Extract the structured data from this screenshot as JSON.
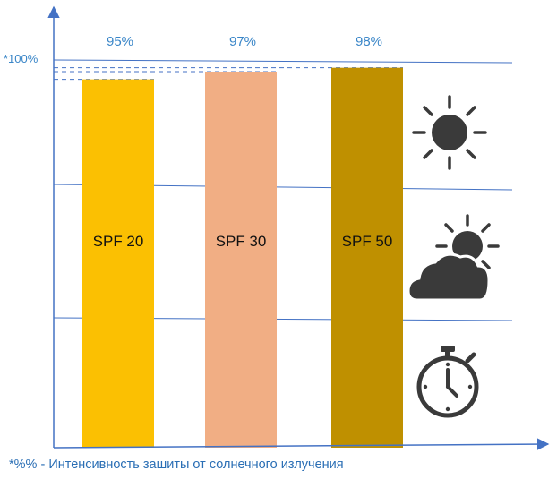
{
  "chart_data": {
    "type": "bar",
    "categories": [
      "SPF 20",
      "SPF 30",
      "SPF 50"
    ],
    "values": [
      95,
      97,
      98
    ],
    "value_labels": [
      "95%",
      "97%",
      "98%"
    ],
    "ylabel": "*100%",
    "ylim": [
      0,
      100
    ],
    "grid": true,
    "colors": [
      "#fbc002",
      "#f1ae84",
      "#bf9000"
    ],
    "axis_color": "#4472c4",
    "label_color": "#3a86c8",
    "icons": [
      "sun-icon",
      "sun-behind-cloud-icon",
      "stopwatch-icon"
    ],
    "footnote": "*%% - Интенсивность зашиты от солнечного излучения"
  }
}
